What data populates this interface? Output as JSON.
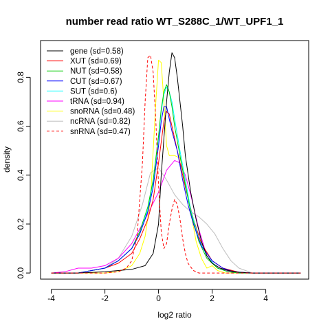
{
  "chart_data": {
    "type": "line",
    "title": "number read ratio WT_S288C_1/WT_UPF1_1",
    "xlabel": "log2 ratio",
    "ylabel": "density",
    "xlim": [
      -4.4,
      5.6
    ],
    "ylim": [
      -0.025,
      0.95
    ],
    "x_ticks": [
      -4,
      -2,
      0,
      2,
      4
    ],
    "y_ticks": [
      0.0,
      0.2,
      0.4,
      0.6,
      0.8
    ],
    "x_tick_labels": [
      "-4",
      "-2",
      "0",
      "2",
      "4"
    ],
    "y_tick_labels": [
      "0.0",
      "0.2",
      "0.4",
      "0.6",
      "0.8"
    ],
    "grid": false,
    "legend_position": "top-left",
    "series": [
      {
        "name": "gene (sd=0.58)",
        "color": "#000000",
        "dash": "solid",
        "x": [
          -4.0,
          -3.0,
          -2.0,
          -1.5,
          -1.0,
          -0.5,
          -0.2,
          0.0,
          0.1,
          0.2,
          0.3,
          0.4,
          0.5,
          0.6,
          0.7,
          0.8,
          0.9,
          1.0,
          1.2,
          1.4,
          1.6,
          1.8,
          2.0,
          2.3,
          2.6,
          3.0,
          3.5,
          4.0,
          5.3
        ],
        "y": [
          0.0,
          0.0,
          0.005,
          0.01,
          0.015,
          0.03,
          0.08,
          0.2,
          0.4,
          0.55,
          0.7,
          0.82,
          0.9,
          0.88,
          0.8,
          0.7,
          0.6,
          0.48,
          0.33,
          0.22,
          0.13,
          0.07,
          0.04,
          0.02,
          0.01,
          0.003,
          0.0,
          0.0,
          0.0
        ]
      },
      {
        "name": "XUT (sd=0.69)",
        "color": "#ff0000",
        "dash": "solid",
        "x": [
          -4.0,
          -3.0,
          -2.0,
          -1.5,
          -1.0,
          -0.7,
          -0.4,
          -0.2,
          0.0,
          0.2,
          0.3,
          0.4,
          0.5,
          0.6,
          0.8,
          1.0,
          1.3,
          1.6,
          2.0,
          2.4,
          3.0,
          3.5,
          4.0,
          5.3
        ],
        "y": [
          0.0,
          0.0,
          0.02,
          0.04,
          0.08,
          0.14,
          0.22,
          0.3,
          0.45,
          0.62,
          0.66,
          0.65,
          0.6,
          0.55,
          0.45,
          0.35,
          0.22,
          0.12,
          0.05,
          0.02,
          0.003,
          0.0,
          0.0,
          0.0
        ]
      },
      {
        "name": "NUT (sd=0.58)",
        "color": "#00cc00",
        "dash": "solid",
        "x": [
          -4.0,
          -3.0,
          -2.0,
          -1.5,
          -1.0,
          -0.7,
          -0.4,
          -0.2,
          0.0,
          0.1,
          0.2,
          0.3,
          0.4,
          0.5,
          0.6,
          0.8,
          1.0,
          1.2,
          1.5,
          1.8,
          2.2,
          2.6,
          3.0,
          3.5,
          4.0,
          5.3
        ],
        "y": [
          0.0,
          0.0,
          0.02,
          0.05,
          0.1,
          0.17,
          0.27,
          0.38,
          0.56,
          0.67,
          0.74,
          0.77,
          0.74,
          0.68,
          0.6,
          0.48,
          0.36,
          0.25,
          0.13,
          0.06,
          0.02,
          0.005,
          0.0,
          0.0,
          0.0,
          0.0
        ]
      },
      {
        "name": "CUT (sd=0.67)",
        "color": "#0000ff",
        "dash": "solid",
        "x": [
          -4.0,
          -3.0,
          -2.0,
          -1.5,
          -1.0,
          -0.7,
          -0.4,
          -0.2,
          0.0,
          0.1,
          0.2,
          0.3,
          0.4,
          0.5,
          0.7,
          0.9,
          1.1,
          1.3,
          1.6,
          2.0,
          2.4,
          2.8,
          3.5,
          4.0,
          5.3
        ],
        "y": [
          0.0,
          0.0,
          0.02,
          0.05,
          0.1,
          0.16,
          0.25,
          0.35,
          0.52,
          0.62,
          0.68,
          0.68,
          0.63,
          0.58,
          0.5,
          0.38,
          0.28,
          0.2,
          0.11,
          0.05,
          0.02,
          0.005,
          0.0,
          0.0,
          0.0
        ]
      },
      {
        "name": "SUT (sd=0.6)",
        "color": "#00ffff",
        "dash": "solid",
        "x": [
          -4.0,
          -3.0,
          -2.0,
          -1.5,
          -1.0,
          -0.7,
          -0.4,
          -0.2,
          0.0,
          0.1,
          0.2,
          0.3,
          0.4,
          0.5,
          0.6,
          0.8,
          1.0,
          1.2,
          1.5,
          1.8,
          2.2,
          2.6,
          3.0,
          3.5,
          4.0,
          5.3
        ],
        "y": [
          0.0,
          0.0,
          0.02,
          0.05,
          0.1,
          0.16,
          0.26,
          0.37,
          0.55,
          0.66,
          0.73,
          0.76,
          0.74,
          0.7,
          0.63,
          0.5,
          0.38,
          0.26,
          0.14,
          0.07,
          0.02,
          0.005,
          0.0,
          0.0,
          0.0,
          0.0
        ]
      },
      {
        "name": "tRNA (sd=0.94)",
        "color": "#ff00ff",
        "dash": "solid",
        "x": [
          -4.0,
          -3.5,
          -3.0,
          -2.5,
          -2.0,
          -1.5,
          -1.0,
          -0.5,
          0.0,
          0.3,
          0.6,
          0.8,
          1.0,
          1.2,
          1.5,
          1.8,
          2.1,
          2.5,
          3.0,
          3.5,
          4.0,
          5.3
        ],
        "y": [
          0.0,
          0.005,
          0.02,
          0.02,
          0.03,
          0.06,
          0.12,
          0.22,
          0.33,
          0.42,
          0.46,
          0.45,
          0.4,
          0.32,
          0.18,
          0.07,
          0.03,
          0.01,
          0.0,
          0.0,
          0.0,
          0.0
        ]
      },
      {
        "name": "snoRNA (sd=0.48)",
        "color": "#ffff00",
        "dash": "solid",
        "x": [
          -4.0,
          -2.0,
          -1.5,
          -1.0,
          -0.7,
          -0.5,
          -0.3,
          -0.2,
          -0.1,
          0.0,
          0.1,
          0.2,
          0.3,
          0.4,
          0.6,
          0.8,
          1.0,
          1.2,
          1.4,
          1.6,
          1.8,
          2.0,
          2.2,
          2.5,
          3.0,
          5.3
        ],
        "y": [
          0.0,
          0.0,
          0.005,
          0.03,
          0.08,
          0.15,
          0.3,
          0.5,
          0.7,
          0.87,
          0.86,
          0.7,
          0.52,
          0.48,
          0.48,
          0.47,
          0.38,
          0.25,
          0.13,
          0.06,
          0.02,
          0.03,
          0.01,
          0.0,
          0.0,
          0.0
        ]
      },
      {
        "name": "ncRNA (sd=0.82)",
        "color": "#bebebe",
        "dash": "solid",
        "x": [
          -4.0,
          -3.0,
          -2.0,
          -1.5,
          -1.0,
          -0.6,
          -0.3,
          0.0,
          0.3,
          0.6,
          0.9,
          1.2,
          1.5,
          1.8,
          2.1,
          2.4,
          2.7,
          3.0,
          3.5,
          4.0,
          5.3
        ],
        "y": [
          0.0,
          0.0,
          0.02,
          0.06,
          0.15,
          0.28,
          0.41,
          0.43,
          0.38,
          0.32,
          0.28,
          0.25,
          0.23,
          0.2,
          0.16,
          0.1,
          0.05,
          0.02,
          0.0,
          0.0,
          0.0
        ]
      },
      {
        "name": "snRNA (sd=0.47)",
        "color": "#ff0000",
        "dash": "dashed",
        "x": [
          -4.0,
          -2.0,
          -1.5,
          -1.2,
          -1.0,
          -0.8,
          -0.6,
          -0.5,
          -0.4,
          -0.3,
          -0.2,
          -0.1,
          0.0,
          0.1,
          0.2,
          0.3,
          0.4,
          0.5,
          0.6,
          0.7,
          0.8,
          0.9,
          1.0,
          1.1,
          1.3,
          1.5,
          2.0,
          5.3
        ],
        "y": [
          0.0,
          0.0,
          0.005,
          0.02,
          0.05,
          0.15,
          0.45,
          0.7,
          0.88,
          0.89,
          0.82,
          0.62,
          0.36,
          0.17,
          0.1,
          0.12,
          0.2,
          0.26,
          0.3,
          0.28,
          0.22,
          0.14,
          0.08,
          0.04,
          0.01,
          0.0,
          0.0,
          0.0
        ]
      }
    ]
  }
}
